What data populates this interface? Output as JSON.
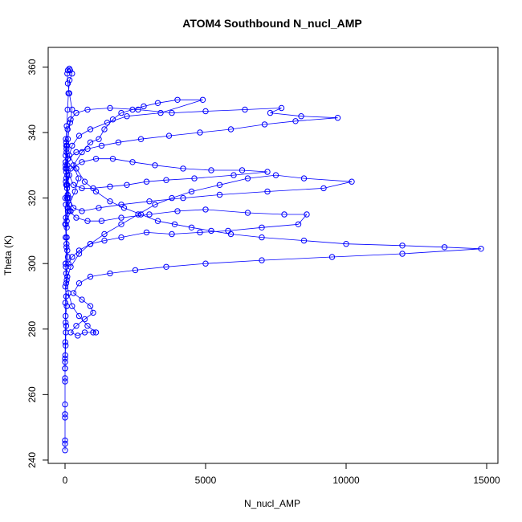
{
  "chart_data": {
    "type": "line",
    "title": "ATOM4 Southbound N_nucl_AMP",
    "xlabel": "N_nucl_AMP",
    "ylabel": "Theta (K)",
    "xlim": [
      -600,
      15400
    ],
    "ylim": [
      239,
      366
    ],
    "xticks": [
      0,
      5000,
      10000,
      15000
    ],
    "yticks": [
      240,
      260,
      280,
      300,
      320,
      340,
      360
    ],
    "grid": false,
    "legend": "none",
    "series_color": "#0000ff",
    "marker": "open-circle",
    "series": [
      {
        "values": [
          [
            0,
            243
          ],
          [
            0,
            245
          ],
          [
            0,
            246
          ],
          [
            0,
            253
          ],
          [
            0,
            254
          ],
          [
            0,
            257
          ],
          [
            0,
            264
          ],
          [
            0,
            265
          ],
          [
            0,
            268
          ],
          [
            0,
            270
          ],
          [
            10,
            272
          ],
          [
            20,
            275
          ],
          [
            30,
            279
          ],
          [
            40,
            281
          ],
          [
            20,
            284
          ],
          [
            60,
            287
          ],
          [
            40,
            290
          ],
          [
            10,
            293
          ],
          [
            80,
            296
          ],
          [
            30,
            299
          ],
          [
            100,
            302
          ],
          [
            50,
            305
          ],
          [
            20,
            308
          ],
          [
            60,
            311
          ],
          [
            30,
            314
          ],
          [
            90,
            317
          ],
          [
            10,
            320
          ],
          [
            70,
            323
          ],
          [
            40,
            326
          ],
          [
            20,
            329
          ],
          [
            110,
            332
          ],
          [
            50,
            335
          ],
          [
            30,
            338
          ],
          [
            70,
            336
          ],
          [
            20,
            331
          ],
          [
            80,
            327
          ],
          [
            100,
            320
          ],
          [
            60,
            313
          ],
          [
            200,
            316
          ],
          [
            140,
            318
          ],
          [
            350,
            322
          ],
          [
            480,
            326
          ],
          [
            300,
            330
          ],
          [
            600,
            334
          ],
          [
            900,
            337
          ],
          [
            1200,
            338
          ],
          [
            1400,
            341
          ],
          [
            1700,
            344
          ],
          [
            2000,
            346
          ],
          [
            2400,
            347
          ],
          [
            2800,
            348
          ],
          [
            3300,
            349
          ],
          [
            4000,
            350
          ],
          [
            4900,
            350
          ],
          [
            3400,
            346
          ],
          [
            2200,
            345
          ],
          [
            1500,
            343
          ],
          [
            900,
            341
          ],
          [
            500,
            339
          ],
          [
            250,
            336
          ],
          [
            150,
            333
          ],
          [
            400,
            329
          ],
          [
            700,
            325
          ],
          [
            1100,
            322
          ],
          [
            1600,
            319
          ],
          [
            2100,
            317
          ],
          [
            2700,
            315
          ],
          [
            3300,
            313
          ],
          [
            3900,
            312
          ],
          [
            4500,
            311
          ],
          [
            5200,
            310
          ],
          [
            5900,
            309
          ],
          [
            7000,
            308
          ],
          [
            8500,
            307
          ],
          [
            10000,
            306
          ],
          [
            12000,
            305.5
          ],
          [
            13500,
            305
          ],
          [
            14800,
            304.5
          ],
          [
            12000,
            303
          ],
          [
            9500,
            302
          ],
          [
            7000,
            301
          ],
          [
            5000,
            300
          ],
          [
            3600,
            299
          ],
          [
            2500,
            298
          ],
          [
            1600,
            297
          ],
          [
            900,
            296
          ],
          [
            500,
            294
          ],
          [
            300,
            291
          ],
          [
            600,
            289
          ],
          [
            900,
            287
          ],
          [
            1000,
            285
          ],
          [
            700,
            283
          ],
          [
            400,
            281
          ],
          [
            200,
            279
          ],
          [
            450,
            278
          ],
          [
            700,
            279
          ],
          [
            1000,
            279
          ],
          [
            1100,
            279
          ],
          [
            800,
            281
          ],
          [
            500,
            284
          ],
          [
            250,
            287
          ],
          [
            120,
            291
          ],
          [
            60,
            295
          ],
          [
            200,
            299
          ],
          [
            500,
            303
          ],
          [
            900,
            306
          ],
          [
            1400,
            309
          ],
          [
            2000,
            312
          ],
          [
            2600,
            315
          ],
          [
            3200,
            318
          ],
          [
            3800,
            320
          ],
          [
            4500,
            322
          ],
          [
            5500,
            324
          ],
          [
            6500,
            326
          ],
          [
            7500,
            327
          ],
          [
            8500,
            326
          ],
          [
            10200,
            325
          ],
          [
            9200,
            323
          ],
          [
            7200,
            322
          ],
          [
            5500,
            321
          ],
          [
            4200,
            320
          ],
          [
            3000,
            319
          ],
          [
            2000,
            318
          ],
          [
            1200,
            317
          ],
          [
            600,
            316
          ],
          [
            300,
            317
          ],
          [
            150,
            320
          ],
          [
            80,
            324
          ],
          [
            40,
            328
          ],
          [
            100,
            332
          ],
          [
            400,
            334
          ],
          [
            800,
            335
          ],
          [
            1300,
            336
          ],
          [
            1900,
            337
          ],
          [
            2700,
            338
          ],
          [
            3700,
            339
          ],
          [
            4800,
            340
          ],
          [
            5900,
            341
          ],
          [
            7100,
            342.5
          ],
          [
            8200,
            343.5
          ],
          [
            9700,
            344.5
          ],
          [
            8400,
            345
          ],
          [
            7300,
            346
          ],
          [
            7700,
            347.5
          ],
          [
            6400,
            347
          ],
          [
            5000,
            346.5
          ],
          [
            3800,
            346
          ],
          [
            2600,
            347
          ],
          [
            1600,
            347.5
          ],
          [
            800,
            347
          ],
          [
            400,
            346
          ],
          [
            200,
            344
          ],
          [
            90,
            341
          ],
          [
            40,
            337
          ],
          [
            20,
            333
          ],
          [
            60,
            329
          ],
          [
            30,
            325
          ],
          [
            90,
            321
          ],
          [
            150,
            316
          ],
          [
            400,
            314
          ],
          [
            800,
            313
          ],
          [
            1300,
            313
          ],
          [
            2000,
            314
          ],
          [
            3000,
            315
          ],
          [
            4000,
            316
          ],
          [
            5000,
            316.5
          ],
          [
            6500,
            315.5
          ],
          [
            7800,
            315
          ],
          [
            8600,
            315
          ],
          [
            8300,
            312
          ],
          [
            7000,
            311
          ],
          [
            5800,
            310
          ],
          [
            4800,
            309.5
          ],
          [
            3800,
            309
          ],
          [
            2900,
            309.5
          ],
          [
            2000,
            308
          ],
          [
            1400,
            307
          ],
          [
            900,
            306
          ],
          [
            500,
            304
          ],
          [
            250,
            302
          ],
          [
            120,
            300
          ],
          [
            40,
            297
          ],
          [
            20,
            300
          ],
          [
            80,
            304
          ],
          [
            60,
            308
          ],
          [
            30,
            312
          ],
          [
            100,
            316
          ],
          [
            70,
            320
          ],
          [
            40,
            324
          ],
          [
            200,
            329
          ],
          [
            600,
            331
          ],
          [
            1100,
            332
          ],
          [
            1700,
            332
          ],
          [
            2400,
            331
          ],
          [
            3200,
            330
          ],
          [
            4200,
            329
          ],
          [
            5200,
            328.5
          ],
          [
            6300,
            328.5
          ],
          [
            7200,
            328
          ],
          [
            6000,
            327
          ],
          [
            4600,
            326
          ],
          [
            3600,
            325.5
          ],
          [
            2900,
            325
          ],
          [
            2200,
            324
          ],
          [
            1600,
            323.5
          ],
          [
            1000,
            323
          ],
          [
            600,
            323
          ],
          [
            300,
            324
          ],
          [
            150,
            327
          ],
          [
            80,
            330
          ],
          [
            50,
            334
          ],
          [
            100,
            338
          ],
          [
            180,
            343
          ],
          [
            250,
            347
          ],
          [
            150,
            352
          ],
          [
            100,
            355
          ],
          [
            80,
            358
          ],
          [
            100,
            359
          ],
          [
            150,
            359.5
          ],
          [
            180,
            359
          ],
          [
            250,
            358
          ],
          [
            160,
            356
          ],
          [
            120,
            352
          ],
          [
            90,
            347
          ],
          [
            60,
            342
          ],
          [
            40,
            336
          ],
          [
            20,
            330
          ],
          [
            60,
            324
          ],
          [
            30,
            318
          ],
          [
            10,
            312
          ],
          [
            50,
            306
          ],
          [
            20,
            300
          ],
          [
            40,
            294
          ],
          [
            10,
            288
          ],
          [
            20,
            282
          ],
          [
            10,
            276
          ],
          [
            0,
            271
          ],
          [
            0,
            268
          ]
        ]
      }
    ]
  }
}
